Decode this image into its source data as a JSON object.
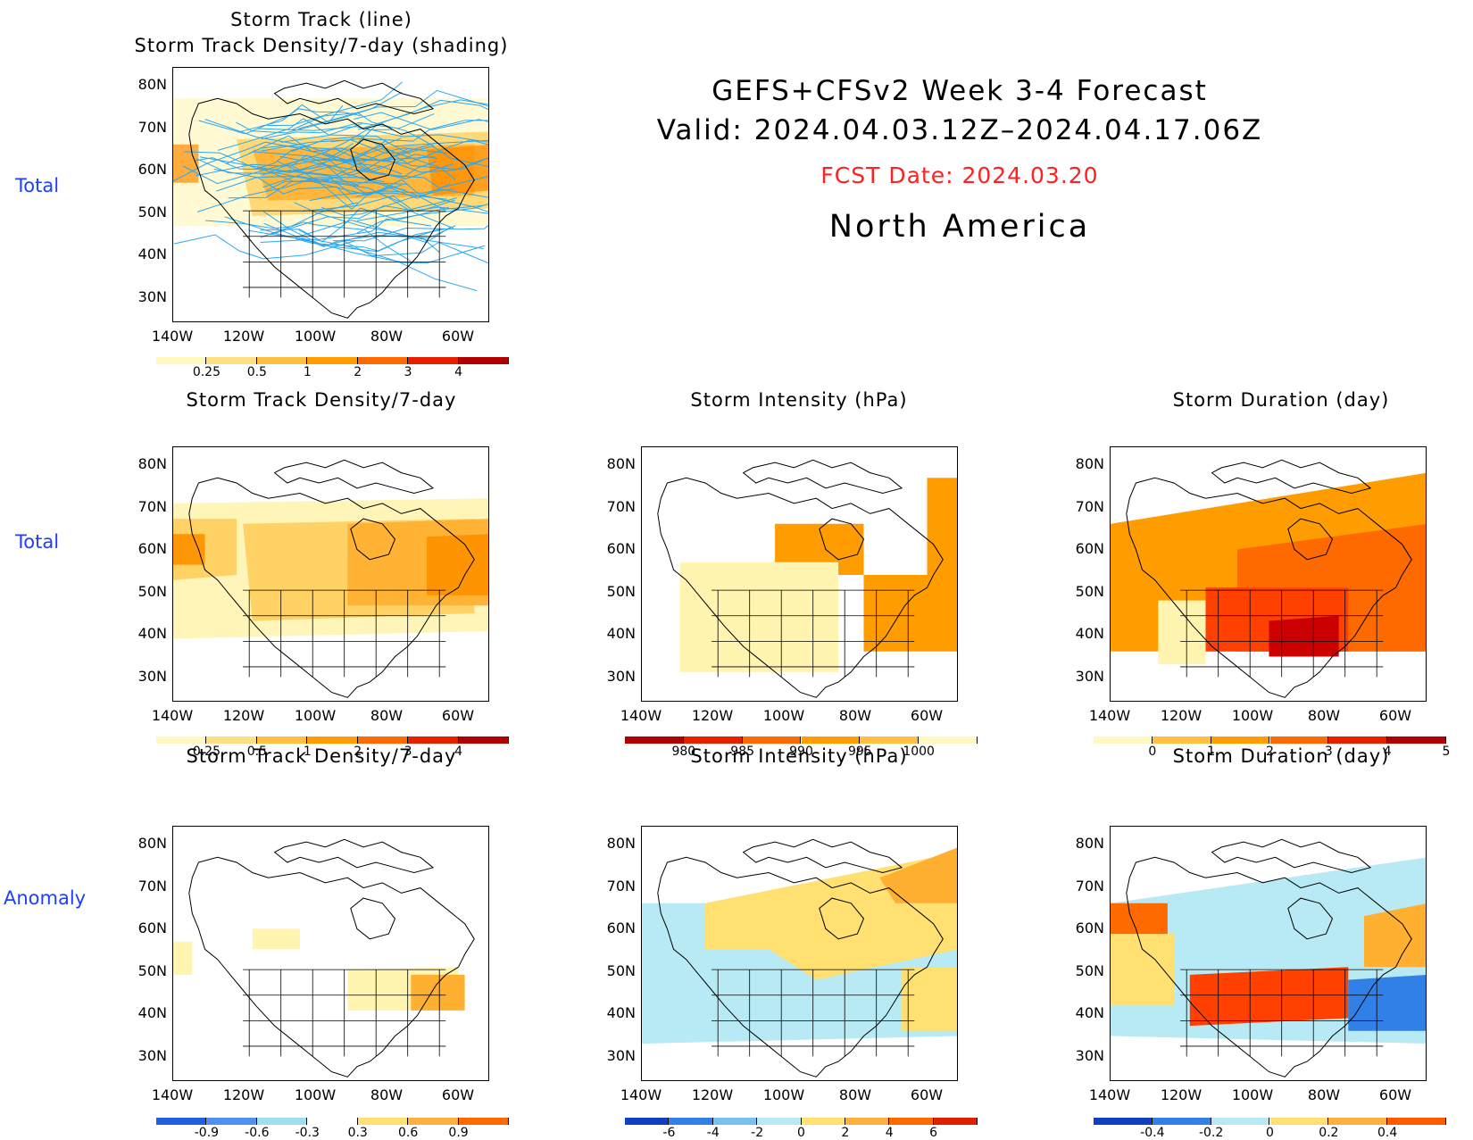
{
  "header": {
    "line1": "GEFS+CFSv2 Week 3-4 Forecast",
    "line2": "Valid: 2024.04.03.12Z–2024.04.17.06Z",
    "fcst_date": "FCST Date: 2024.03.20",
    "region": "North America",
    "fcst_color": "#ff2020"
  },
  "row_labels": {
    "row1": "Total",
    "row2": "Total",
    "row3": "Anomaly"
  },
  "panels": {
    "p1": {
      "title1": "Storm Track (line)",
      "title2": "Storm Track Density/7-day (shading)"
    },
    "p2": {
      "title": "Storm Track Density/7-day"
    },
    "p3": {
      "title": "Storm Intensity (hPa)"
    },
    "p4": {
      "title": "Storm Duration (day)"
    },
    "p5": {
      "title": "Storm Track Density/7-day"
    },
    "p6": {
      "title": "Storm Intensity (hPa)"
    },
    "p7": {
      "title": "Storm Duration (day)"
    }
  },
  "axes": {
    "lat_labels": [
      "80N",
      "70N",
      "60N",
      "50N",
      "40N",
      "30N"
    ],
    "lon_labels": [
      "140W",
      "120W",
      "100W",
      "80W",
      "60W"
    ]
  },
  "colorbars": {
    "density_total": {
      "labels": [
        "0.25",
        "0.5",
        "1",
        "2",
        "3",
        "4"
      ],
      "colors": [
        "#fff8c0",
        "#ffe080",
        "#ffbf40",
        "#ff9d00",
        "#ff6a00",
        "#e61f00",
        "#b00000"
      ]
    },
    "intensity_total": {
      "labels": [
        "980",
        "985",
        "990",
        "995",
        "1000"
      ],
      "colors": [
        "#b00000",
        "#e61f00",
        "#ff6a00",
        "#ff9d00",
        "#ffbf40",
        "#fff8c0"
      ]
    },
    "duration_total": {
      "labels": [
        "0",
        "1",
        "2",
        "3",
        "4",
        "5"
      ],
      "colors": [
        "#fff8c0",
        "#ffbf40",
        "#ff9d00",
        "#ff6a00",
        "#e61f00",
        "#b00000"
      ]
    },
    "density_anom": {
      "labels": [
        "-0.9",
        "-0.6",
        "-0.3",
        "0.3",
        "0.6",
        "0.9"
      ],
      "colors": [
        "#2060e0",
        "#5090f0",
        "#a0dff0",
        "#ffffff",
        "#ffe070",
        "#ffb040",
        "#ff6a00"
      ]
    },
    "intensity_anom": {
      "labels": [
        "-6",
        "-4",
        "-2",
        "0",
        "2",
        "4",
        "6"
      ],
      "colors": [
        "#1040c0",
        "#3080e8",
        "#78c0f0",
        "#b8eaf5",
        "#ffe070",
        "#ffb040",
        "#ff6a00",
        "#e02000"
      ]
    },
    "duration_anom": {
      "labels": [
        "-0.4",
        "-0.2",
        "0",
        "0.2",
        "0.4"
      ],
      "colors": [
        "#1040c0",
        "#3080e8",
        "#b8eaf5",
        "#ffe070",
        "#ffb040",
        "#ff5a00"
      ]
    }
  },
  "fields": {
    "p1": [
      [
        "#fff4b0",
        0.55,
        [
          [
            0,
            12
          ],
          [
            100,
            12
          ],
          [
            100,
            62
          ],
          [
            0,
            62
          ]
        ]
      ],
      [
        "#ffd060",
        0.8,
        [
          [
            20,
            28
          ],
          [
            100,
            25
          ],
          [
            100,
            55
          ],
          [
            25,
            58
          ]
        ]
      ],
      [
        "#ffb030",
        0.85,
        [
          [
            25,
            32
          ],
          [
            95,
            30
          ],
          [
            95,
            50
          ],
          [
            30,
            52
          ]
        ]
      ],
      [
        "#ff8c00",
        0.75,
        [
          [
            80,
            32
          ],
          [
            100,
            30
          ],
          [
            100,
            48
          ],
          [
            82,
            50
          ]
        ]
      ],
      [
        "#ff8c00",
        0.7,
        [
          [
            0,
            30
          ],
          [
            8,
            30
          ],
          [
            8,
            45
          ],
          [
            0,
            45
          ]
        ]
      ]
    ],
    "p2": [
      [
        "#fff4b0",
        0.9,
        [
          [
            0,
            22
          ],
          [
            100,
            20
          ],
          [
            100,
            72
          ],
          [
            0,
            75
          ]
        ]
      ],
      [
        "#ffd060",
        0.95,
        [
          [
            0,
            28
          ],
          [
            20,
            28
          ],
          [
            20,
            50
          ],
          [
            0,
            52
          ]
        ]
      ],
      [
        "#ffd060",
        0.95,
        [
          [
            22,
            30
          ],
          [
            95,
            28
          ],
          [
            95,
            65
          ],
          [
            25,
            68
          ]
        ]
      ],
      [
        "#ffb030",
        0.95,
        [
          [
            55,
            30
          ],
          [
            100,
            28
          ],
          [
            100,
            62
          ],
          [
            55,
            62
          ]
        ]
      ],
      [
        "#ff9200",
        0.95,
        [
          [
            0,
            34
          ],
          [
            10,
            34
          ],
          [
            10,
            46
          ],
          [
            0,
            46
          ]
        ]
      ],
      [
        "#ff9200",
        0.95,
        [
          [
            80,
            35
          ],
          [
            100,
            34
          ],
          [
            100,
            58
          ],
          [
            80,
            58
          ]
        ]
      ]
    ],
    "p3": [
      [
        "#ff9d00",
        1,
        [
          [
            0,
            30
          ],
          [
            42,
            30
          ],
          [
            42,
            50
          ],
          [
            90,
            50
          ],
          [
            90,
            12
          ],
          [
            100,
            12
          ],
          [
            100,
            80
          ],
          [
            70,
            80
          ],
          [
            70,
            30
          ],
          [
            0,
            30
          ]
        ]
      ],
      [
        "#fff4b0",
        1,
        [
          [
            12,
            45
          ],
          [
            62,
            45
          ],
          [
            62,
            88
          ],
          [
            12,
            88
          ]
        ]
      ]
    ],
    "p4": [
      [
        "#ff9d00",
        1,
        [
          [
            0,
            30
          ],
          [
            100,
            10
          ],
          [
            100,
            80
          ],
          [
            0,
            80
          ]
        ]
      ],
      [
        "#ff6a00",
        1,
        [
          [
            40,
            40
          ],
          [
            100,
            30
          ],
          [
            100,
            80
          ],
          [
            40,
            80
          ]
        ]
      ],
      [
        "#ff4000",
        1,
        [
          [
            30,
            55
          ],
          [
            75,
            55
          ],
          [
            75,
            80
          ],
          [
            30,
            80
          ]
        ]
      ],
      [
        "#cc0000",
        1,
        [
          [
            50,
            68
          ],
          [
            72,
            66
          ],
          [
            72,
            82
          ],
          [
            50,
            82
          ]
        ]
      ],
      [
        "#fff4b0",
        1,
        [
          [
            15,
            60
          ],
          [
            30,
            60
          ],
          [
            30,
            85
          ],
          [
            15,
            85
          ]
        ]
      ]
    ],
    "p5": [
      [
        "#fff4b0",
        1,
        [
          [
            25,
            40
          ],
          [
            40,
            40
          ],
          [
            40,
            48
          ],
          [
            25,
            48
          ]
        ]
      ],
      [
        "#fff4b0",
        1,
        [
          [
            55,
            56
          ],
          [
            90,
            55
          ],
          [
            90,
            72
          ],
          [
            55,
            72
          ]
        ]
      ],
      [
        "#ffb030",
        1,
        [
          [
            75,
            58
          ],
          [
            92,
            58
          ],
          [
            92,
            72
          ],
          [
            75,
            72
          ]
        ]
      ],
      [
        "#fff4b0",
        1,
        [
          [
            0,
            45
          ],
          [
            6,
            45
          ],
          [
            6,
            58
          ],
          [
            0,
            58
          ]
        ]
      ]
    ],
    "p6": [
      [
        "#b8eaf5",
        1,
        [
          [
            0,
            30
          ],
          [
            100,
            30
          ],
          [
            100,
            82
          ],
          [
            0,
            85
          ]
        ]
      ],
      [
        "#ffe070",
        1,
        [
          [
            20,
            30
          ],
          [
            100,
            10
          ],
          [
            100,
            48
          ],
          [
            55,
            60
          ],
          [
            40,
            48
          ],
          [
            20,
            48
          ]
        ]
      ],
      [
        "#ffb030",
        1,
        [
          [
            75,
            20
          ],
          [
            100,
            8
          ],
          [
            100,
            30
          ],
          [
            80,
            30
          ]
        ]
      ],
      [
        "#ffe070",
        1,
        [
          [
            82,
            55
          ],
          [
            100,
            55
          ],
          [
            100,
            80
          ],
          [
            82,
            80
          ]
        ]
      ]
    ],
    "p7": [
      [
        "#b8eaf5",
        1,
        [
          [
            0,
            30
          ],
          [
            100,
            12
          ],
          [
            100,
            85
          ],
          [
            0,
            82
          ]
        ]
      ],
      [
        "#ffe070",
        1,
        [
          [
            0,
            42
          ],
          [
            20,
            42
          ],
          [
            20,
            70
          ],
          [
            0,
            70
          ]
        ]
      ],
      [
        "#ff6a00",
        1,
        [
          [
            0,
            30
          ],
          [
            18,
            30
          ],
          [
            18,
            42
          ],
          [
            0,
            42
          ]
        ]
      ],
      [
        "#ff4000",
        1,
        [
          [
            25,
            58
          ],
          [
            75,
            55
          ],
          [
            75,
            75
          ],
          [
            25,
            78
          ]
        ]
      ],
      [
        "#3080e8",
        1,
        [
          [
            75,
            60
          ],
          [
            100,
            58
          ],
          [
            100,
            80
          ],
          [
            75,
            80
          ]
        ]
      ],
      [
        "#ffb030",
        1,
        [
          [
            80,
            35
          ],
          [
            100,
            30
          ],
          [
            100,
            55
          ],
          [
            80,
            55
          ]
        ]
      ]
    ]
  }
}
